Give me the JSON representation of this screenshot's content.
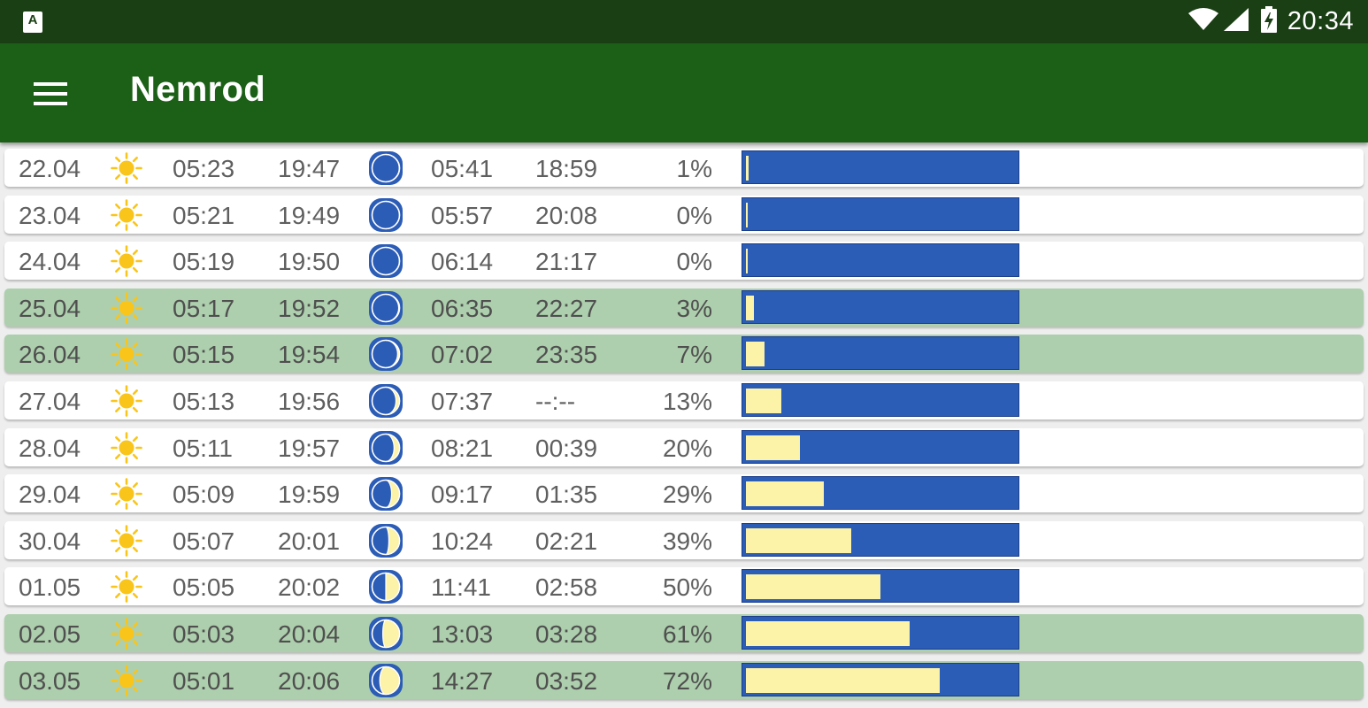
{
  "status_bar": {
    "time": "20:34",
    "app_badge": "A",
    "icons": [
      "app-notification-icon",
      "wifi-icon",
      "cell-signal-icon",
      "battery-charging-icon"
    ]
  },
  "app_bar": {
    "title": "Nemrod",
    "menu_icon": "hamburger-menu-icon"
  },
  "colors": {
    "status_bar": "#1b3f14",
    "app_bar": "#1b6016",
    "row_highlight": "#adcfad",
    "moon_dark": "#2b5cb6",
    "moon_light": "#fcf3a9",
    "sun": "#f9c51b"
  },
  "rows": [
    {
      "date": "22.04",
      "sunrise": "05:23",
      "sunset": "19:47",
      "moonrise": "05:41",
      "moonset": "18:59",
      "illumination": "1%",
      "fraction": 0.01,
      "highlight": false
    },
    {
      "date": "23.04",
      "sunrise": "05:21",
      "sunset": "19:49",
      "moonrise": "05:57",
      "moonset": "20:08",
      "illumination": "0%",
      "fraction": 0.0,
      "highlight": false
    },
    {
      "date": "24.04",
      "sunrise": "05:19",
      "sunset": "19:50",
      "moonrise": "06:14",
      "moonset": "21:17",
      "illumination": "0%",
      "fraction": 0.0,
      "highlight": false
    },
    {
      "date": "25.04",
      "sunrise": "05:17",
      "sunset": "19:52",
      "moonrise": "06:35",
      "moonset": "22:27",
      "illumination": "3%",
      "fraction": 0.03,
      "highlight": true
    },
    {
      "date": "26.04",
      "sunrise": "05:15",
      "sunset": "19:54",
      "moonrise": "07:02",
      "moonset": "23:35",
      "illumination": "7%",
      "fraction": 0.07,
      "highlight": true
    },
    {
      "date": "27.04",
      "sunrise": "05:13",
      "sunset": "19:56",
      "moonrise": "07:37",
      "moonset": "--:--",
      "illumination": "13%",
      "fraction": 0.13,
      "highlight": false
    },
    {
      "date": "28.04",
      "sunrise": "05:11",
      "sunset": "19:57",
      "moonrise": "08:21",
      "moonset": "00:39",
      "illumination": "20%",
      "fraction": 0.2,
      "highlight": false
    },
    {
      "date": "29.04",
      "sunrise": "05:09",
      "sunset": "19:59",
      "moonrise": "09:17",
      "moonset": "01:35",
      "illumination": "29%",
      "fraction": 0.29,
      "highlight": false
    },
    {
      "date": "30.04",
      "sunrise": "05:07",
      "sunset": "20:01",
      "moonrise": "10:24",
      "moonset": "02:21",
      "illumination": "39%",
      "fraction": 0.39,
      "highlight": false
    },
    {
      "date": "01.05",
      "sunrise": "05:05",
      "sunset": "20:02",
      "moonrise": "11:41",
      "moonset": "02:58",
      "illumination": "50%",
      "fraction": 0.5,
      "highlight": false
    },
    {
      "date": "02.05",
      "sunrise": "05:03",
      "sunset": "20:04",
      "moonrise": "13:03",
      "moonset": "03:28",
      "illumination": "61%",
      "fraction": 0.61,
      "highlight": true
    },
    {
      "date": "03.05",
      "sunrise": "05:01",
      "sunset": "20:06",
      "moonrise": "14:27",
      "moonset": "03:52",
      "illumination": "72%",
      "fraction": 0.72,
      "highlight": true
    }
  ]
}
